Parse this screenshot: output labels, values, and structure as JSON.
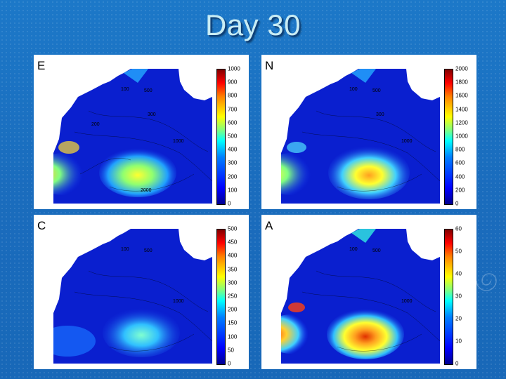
{
  "slide_title": "Day 30",
  "panels": [
    {
      "label": "E",
      "ticks": [
        "1000",
        "900",
        "800",
        "700",
        "600",
        "500",
        "400",
        "300",
        "200",
        "100",
        "0"
      ]
    },
    {
      "label": "N",
      "ticks": [
        "2000",
        "1800",
        "1600",
        "1400",
        "1200",
        "1000",
        "800",
        "600",
        "400",
        "200",
        "0"
      ]
    },
    {
      "label": "C",
      "ticks": [
        "500",
        "450",
        "400",
        "350",
        "300",
        "250",
        "200",
        "150",
        "100",
        "50",
        "0"
      ]
    },
    {
      "label": "A",
      "ticks": [
        "60",
        "50",
        "40",
        "30",
        "20",
        "10",
        "0"
      ]
    }
  ],
  "contour_labels": [
    "20",
    "40",
    "100",
    "200",
    "300",
    "500",
    "1000",
    "2000"
  ],
  "colorbar_colors": [
    "#00008f",
    "#0000ff",
    "#0080ff",
    "#00ffff",
    "#80ff80",
    "#ffff00",
    "#ff8000",
    "#ff0000",
    "#800000"
  ]
}
